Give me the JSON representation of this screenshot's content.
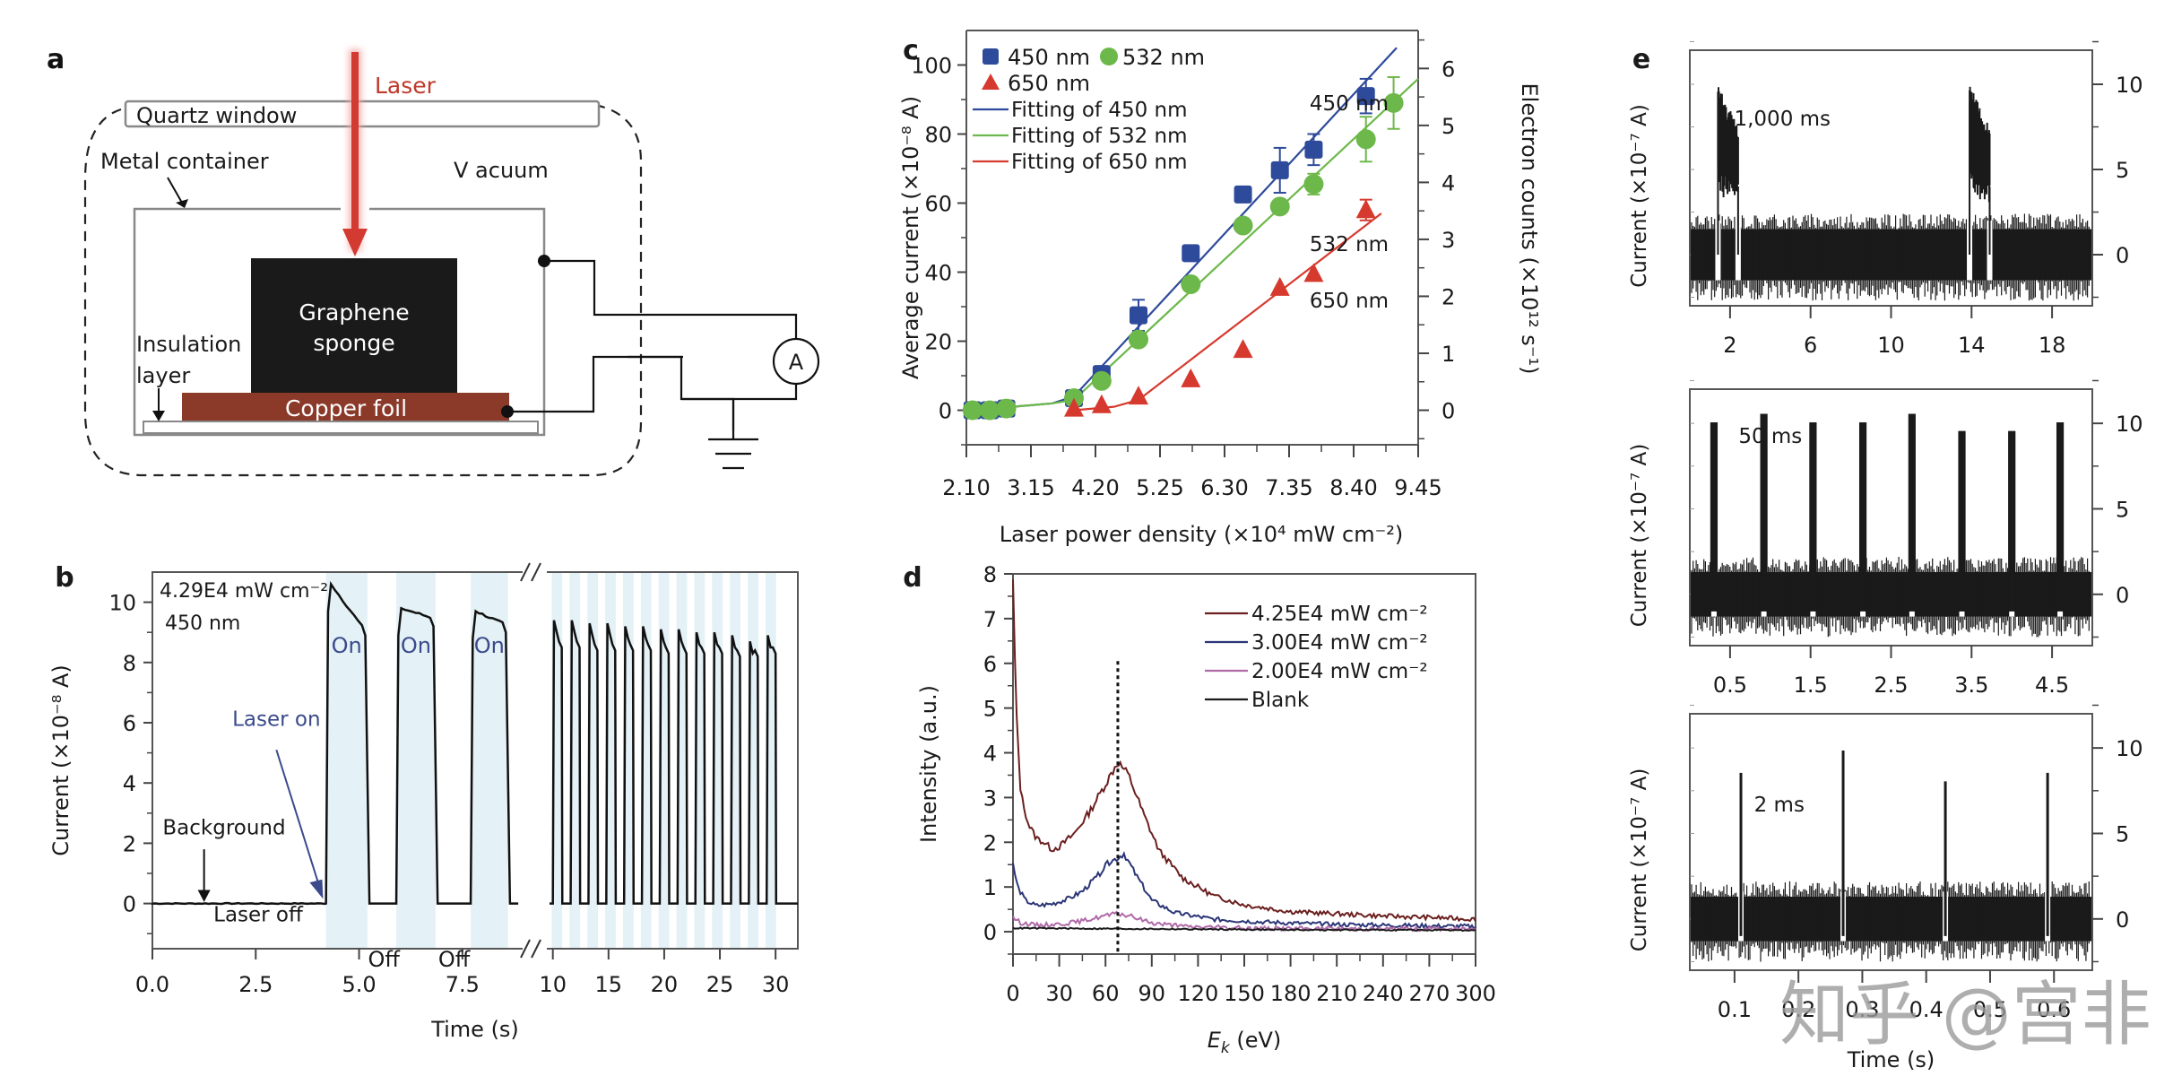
{
  "figure": {
    "panel_letters": [
      "a",
      "b",
      "c",
      "d",
      "e"
    ],
    "watermark": "知乎 @宫非"
  },
  "diagram_a": {
    "laser_label": "Laser",
    "quartz_window": "Quartz window",
    "metal_container": "Metal container",
    "vacuum": "V acuum",
    "graphene_line1": "Graphene",
    "graphene_line2": "sponge",
    "insulation_line1": "Insulation",
    "insulation_line2": "layer",
    "copper_foil": "Copper  foil",
    "ammeter": "A",
    "colors": {
      "laser": "#d23a32",
      "copper": "#8b3a2a",
      "sponge": "#1a1a1a",
      "laser_text": "#c0392b"
    }
  },
  "chart_data": [
    {
      "id": "b",
      "type": "line",
      "title": "",
      "xlabel": "Time (s)",
      "ylabel": "Current (×10⁻⁸ A)",
      "ylim": [
        -1.5,
        11
      ],
      "yticks": [
        0,
        2,
        4,
        6,
        8,
        10
      ],
      "xticks_left": [
        "0.0",
        "2.5",
        "5.0",
        "7.5"
      ],
      "xticks_right": [
        "10",
        "15",
        "20",
        "25",
        "30"
      ],
      "axis_break": true,
      "annotations": {
        "condition_line1": "4.29E4 mW cm⁻²",
        "condition_line2": "450 nm",
        "laser_on": "Laser on",
        "background": "Background",
        "laser_off": "Laser off",
        "on": "On",
        "off": "Off"
      },
      "left_segment": {
        "xlim": [
          0,
          9
        ],
        "on_intervals": [
          [
            4.2,
            5.2
          ],
          [
            5.9,
            6.85
          ],
          [
            7.7,
            8.6
          ]
        ],
        "peaks": [
          10.6,
          9.8,
          9.7
        ],
        "ends": [
          8.9,
          9.2,
          9.0
        ]
      },
      "right_segment": {
        "xlim": [
          9.3,
          32
        ],
        "pulse_count": 13,
        "peaks": [
          9.4,
          9.4,
          9.3,
          9.3,
          9.2,
          9.2,
          9.1,
          9.1,
          9.0,
          9.0,
          8.9,
          8.7,
          8.9
        ],
        "ends": [
          8.5,
          8.5,
          8.4,
          8.4,
          8.4,
          8.4,
          8.3,
          8.3,
          8.3,
          8.3,
          8.2,
          8.2,
          8.3
        ]
      },
      "colors": {
        "trace": "#111111",
        "shade": "#e4f1f6",
        "annotation_blue": "#3a4a8c"
      }
    },
    {
      "id": "c",
      "type": "scatter",
      "title": "",
      "xlabel": "Laser power density (×10⁴ mW cm⁻²)",
      "ylabel": "Average current (×10⁻⁸ A)",
      "ylabel_right": "Electron counts (×10¹² s⁻¹)",
      "xlim": [
        2.1,
        9.45
      ],
      "ylim": [
        -10,
        110
      ],
      "xticks": [
        "2.10",
        "3.15",
        "4.20",
        "5.25",
        "6.30",
        "7.35",
        "8.40",
        "9.45"
      ],
      "yticks": [
        0,
        20,
        40,
        60,
        80,
        100
      ],
      "yticks_right": [
        0,
        1,
        2,
        3,
        4,
        5,
        6
      ],
      "legend": [
        "450 nm",
        "532 nm",
        "650 nm",
        "Fitting of 450 nm",
        "Fitting of 532 nm",
        "Fitting of 650 nm"
      ],
      "legend_position": "top-left",
      "inline_labels": [
        "450 nm",
        "532 nm",
        "650 nm"
      ],
      "series": [
        {
          "name": "450 nm",
          "marker": "square",
          "color": "#2e4a9a",
          "x": [
            2.2,
            2.48,
            2.75,
            3.85,
            4.3,
            4.9,
            5.75,
            6.6,
            7.2,
            7.75,
            8.6
          ],
          "y": [
            0,
            0,
            0.5,
            3.5,
            10.5,
            27.5,
            45.5,
            62.5,
            69.5,
            75.5,
            91
          ],
          "err": [
            0,
            0,
            0,
            0,
            0,
            4.5,
            0,
            0,
            6.5,
            4.5,
            5
          ]
        },
        {
          "name": "532 nm",
          "marker": "circle",
          "color": "#6db84a",
          "x": [
            2.2,
            2.48,
            2.75,
            3.85,
            4.3,
            4.9,
            5.75,
            6.6,
            7.2,
            7.75,
            8.6,
            9.05
          ],
          "y": [
            0,
            0,
            0.5,
            3.5,
            8.5,
            20.5,
            36.5,
            53.5,
            59,
            65.5,
            78.5,
            89
          ],
          "err": [
            0,
            0,
            0,
            0,
            0,
            0,
            0,
            0,
            0,
            3,
            6.5,
            7.5
          ]
        },
        {
          "name": "650 nm",
          "marker": "triangle",
          "color": "#d63a2e",
          "x": [
            3.85,
            4.3,
            4.9,
            5.75,
            6.6,
            7.2,
            7.75,
            8.6
          ],
          "y": [
            0.5,
            1.5,
            4,
            9,
            17.5,
            35.5,
            39.5,
            58
          ],
          "err": [
            0,
            0,
            0,
            0,
            0,
            0,
            0,
            3
          ]
        }
      ],
      "fits": [
        {
          "name": "Fitting of 450 nm",
          "color": "#2e4a9a",
          "x": [
            2.2,
            3.5,
            3.85,
            9.1
          ],
          "y": [
            0,
            2,
            4,
            105
          ]
        },
        {
          "name": "Fitting of 532 nm",
          "color": "#6db84a",
          "x": [
            2.2,
            3.5,
            3.85,
            9.45
          ],
          "y": [
            0,
            2,
            3,
            96
          ]
        },
        {
          "name": "Fitting of 650 nm",
          "color": "#d63a2e",
          "x": [
            3.85,
            4.5,
            4.9,
            8.85
          ],
          "y": [
            0,
            1,
            3,
            57
          ]
        }
      ]
    },
    {
      "id": "d",
      "type": "line",
      "title": "",
      "xlabel": "E_k (eV)",
      "ylabel": "Intensity (a.u.)",
      "xlim": [
        0,
        300
      ],
      "ylim": [
        -0.5,
        8
      ],
      "xticks": [
        0,
        30,
        60,
        90,
        120,
        150,
        180,
        210,
        240,
        270,
        300
      ],
      "yticks": [
        0,
        1,
        2,
        3,
        4,
        5,
        6,
        7,
        8
      ],
      "vline_x": 68,
      "legend_position": "top-right",
      "series": [
        {
          "name": "4.25E4 mW cm⁻²",
          "color": "#6b1f1f",
          "x": [
            0,
            2,
            5,
            10,
            15,
            20,
            25,
            30,
            40,
            50,
            60,
            68,
            75,
            85,
            95,
            110,
            130,
            150,
            180,
            210,
            240,
            270,
            300
          ],
          "y": [
            7.8,
            5.0,
            3.1,
            2.4,
            2.1,
            2.0,
            1.85,
            1.9,
            2.2,
            2.7,
            3.3,
            3.8,
            3.5,
            2.6,
            1.8,
            1.2,
            0.8,
            0.6,
            0.45,
            0.4,
            0.35,
            0.32,
            0.28
          ]
        },
        {
          "name": "3.00E4 mW cm⁻²",
          "color": "#2b3577",
          "x": [
            0,
            3,
            8,
            15,
            25,
            35,
            45,
            55,
            62,
            68,
            72,
            80,
            90,
            105,
            130,
            160,
            200,
            250,
            300
          ],
          "y": [
            1.5,
            1.0,
            0.7,
            0.58,
            0.62,
            0.72,
            0.9,
            1.25,
            1.55,
            1.65,
            1.75,
            1.25,
            0.7,
            0.42,
            0.28,
            0.22,
            0.17,
            0.14,
            0.12
          ]
        },
        {
          "name": "2.00E4 mW cm⁻²",
          "color": "#b06aa8",
          "x": [
            0,
            5,
            15,
            30,
            45,
            60,
            68,
            75,
            90,
            110,
            150,
            200,
            300
          ],
          "y": [
            0.32,
            0.2,
            0.15,
            0.17,
            0.24,
            0.36,
            0.4,
            0.36,
            0.2,
            0.12,
            0.08,
            0.07,
            0.06
          ]
        },
        {
          "name": "Blank",
          "color": "#1a1a1a",
          "x": [
            0,
            50,
            100,
            150,
            200,
            250,
            300
          ],
          "y": [
            0.08,
            0.07,
            0.06,
            0.05,
            0.04,
            0.04,
            0.03
          ]
        }
      ]
    },
    {
      "id": "e1",
      "type": "line",
      "annotation": "1,000 ms",
      "xlabel": "",
      "ylabel": "Current (×10⁻⁷ A)",
      "xlim": [
        0,
        20
      ],
      "ylim": [
        -3,
        12
      ],
      "xticks": [
        2,
        6,
        10,
        14,
        18
      ],
      "yticks_right": [
        0,
        5,
        10
      ],
      "pulses": [
        {
          "start": 1.4,
          "end": 2.4,
          "peak": 10
        },
        {
          "start": 13.9,
          "end": 14.9,
          "peak": 10
        }
      ],
      "baseline_noise": 1.5
    },
    {
      "id": "e2",
      "type": "line",
      "annotation": "50 ms",
      "xlabel": "",
      "ylabel": "Current (×10⁻⁷ A)",
      "xlim": [
        0,
        5
      ],
      "ylim": [
        -3,
        12
      ],
      "xticks": [
        0.5,
        1.5,
        2.5,
        3.5,
        4.5
      ],
      "yticks_right": [
        0,
        5,
        10
      ],
      "pulse_times": [
        0.3,
        0.92,
        1.53,
        2.15,
        2.76,
        3.38,
        4.0,
        4.6
      ],
      "pulse_peaks": [
        10,
        10.5,
        10,
        10,
        10.5,
        9.5,
        9.5,
        10
      ],
      "baseline_noise": 1.3
    },
    {
      "id": "e3",
      "type": "line",
      "annotation": "2 ms",
      "xlabel": "Time (s)",
      "ylabel": "Current (×10⁻⁷ A)",
      "xlim": [
        0.03,
        0.66
      ],
      "ylim": [
        -3,
        12
      ],
      "xticks": [
        "0.1",
        "0.2",
        "0.3",
        "0.4",
        "0.5",
        "0.6"
      ],
      "yticks_right": [
        0,
        5,
        10
      ],
      "pulse_times": [
        0.11,
        0.27,
        0.43,
        0.59
      ],
      "pulse_peaks": [
        8.5,
        9.8,
        8.0,
        8.5
      ],
      "baseline_noise": 1.3
    }
  ]
}
